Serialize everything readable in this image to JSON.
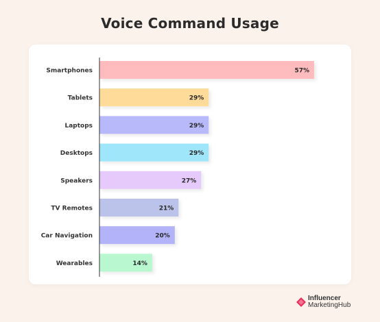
{
  "title": "Voice Command Usage",
  "brand": {
    "line1": "Influencer",
    "line2": "MarketingHub",
    "color": "#e8315a"
  },
  "chart_data": {
    "type": "bar",
    "orientation": "horizontal",
    "title": "Voice Command Usage",
    "xlabel": "",
    "ylabel": "",
    "value_suffix": "%",
    "categories": [
      "Smartphones",
      "Tablets",
      "Laptops",
      "Desktops",
      "Speakers",
      "TV Remotes",
      "Car Navigation",
      "Wearables"
    ],
    "values": [
      57,
      29,
      29,
      29,
      27,
      21,
      20,
      14
    ],
    "colors": [
      "#ffbcbf",
      "#fedb99",
      "#b8b9fb",
      "#a0e6fb",
      "#e6cafb",
      "#bcc3ea",
      "#b3b3fa",
      "#b9f7d0"
    ],
    "grid": false,
    "legend": "none"
  }
}
